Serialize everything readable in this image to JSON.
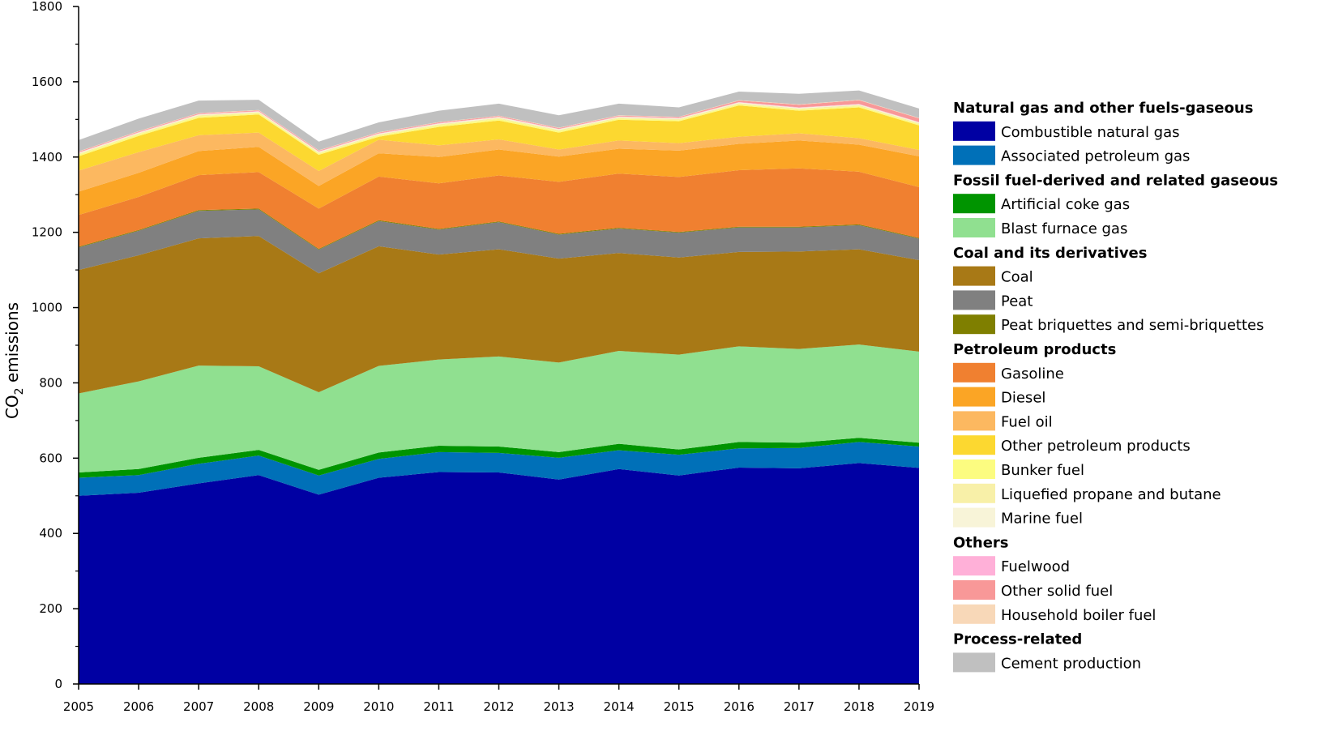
{
  "colors": {
    "combustible_natural_gas": "#0000A3",
    "associated_petroleum_gas": "#0070B8",
    "artificial_coke_gas": "#009400",
    "blast_furnace_gas": "#90E090",
    "coal": "#A87916",
    "peat": "#808080",
    "peat_briquettes": "#7F7F00",
    "gasoline": "#F08030",
    "diesel": "#FBA525",
    "fuel_oil": "#FCB860",
    "other_petroleum": "#FCD830",
    "bunker_fuel": "#FCFC80",
    "lpg": "#F8F0A8",
    "marine_fuel": "#F8F4D8",
    "fuelwood": "#FFB0D8",
    "other_solid": "#F89898",
    "household_boiler": "#F8D8B8",
    "cement": "#C0C0C0"
  },
  "chart_data": {
    "type": "area",
    "title": "",
    "xlabel": "",
    "ylabel_main": "CO",
    "ylabel_sub": "2",
    "ylabel_rest": " emissions",
    "ylim": [
      0,
      1800
    ],
    "yticks": [
      0,
      200,
      400,
      600,
      800,
      1000,
      1200,
      1400,
      1600,
      1800
    ],
    "x": [
      "2005",
      "2006",
      "2007",
      "2008",
      "2009",
      "2010",
      "2011",
      "2012",
      "2013",
      "2014",
      "2015",
      "2016",
      "2017",
      "2018",
      "2019"
    ],
    "legend_position": "right",
    "series": [
      {
        "name": "Combustible natural gas",
        "key": "combustible_natural_gas",
        "values": [
          500,
          508,
          533,
          555,
          503,
          548,
          563,
          562,
          543,
          571,
          554,
          575,
          573,
          587,
          574
        ]
      },
      {
        "name": "Associated petroleum gas",
        "key": "associated_petroleum_gas",
        "values": [
          48,
          47,
          52,
          52,
          51,
          50,
          53,
          52,
          58,
          50,
          55,
          51,
          54,
          56,
          57
        ]
      },
      {
        "name": "Artificial coke gas",
        "key": "artificial_coke_gas",
        "values": [
          14,
          16,
          16,
          15,
          15,
          17,
          17,
          17,
          15,
          17,
          14,
          17,
          14,
          11,
          10
        ]
      },
      {
        "name": "Blast furnace gas",
        "key": "blast_furnace_gas",
        "values": [
          210,
          233,
          245,
          222,
          206,
          230,
          229,
          239,
          238,
          247,
          252,
          254,
          249,
          248,
          242
        ]
      },
      {
        "name": "Coal",
        "key": "coal",
        "values": [
          328,
          335,
          338,
          346,
          316,
          318,
          279,
          285,
          276,
          260,
          258,
          251,
          259,
          253,
          243
        ]
      },
      {
        "name": "Peat",
        "key": "peat",
        "values": [
          60,
          65,
          73,
          71,
          63,
          67,
          66,
          72,
          64,
          65,
          66,
          65,
          64,
          64,
          57
        ]
      },
      {
        "name": "Peat  briquettes and semi-briquettes",
        "key": "peat_briquettes",
        "values": [
          2,
          2,
          2,
          2,
          2,
          2,
          2,
          2,
          2,
          2,
          2,
          2,
          2,
          2,
          2
        ]
      },
      {
        "name": "Gasoline",
        "key": "gasoline",
        "values": [
          84,
          88,
          93,
          97,
          107,
          116,
          121,
          122,
          138,
          144,
          146,
          150,
          155,
          140,
          135
        ]
      },
      {
        "name": "Diesel",
        "key": "diesel",
        "values": [
          62,
          64,
          64,
          67,
          60,
          62,
          70,
          69,
          67,
          66,
          70,
          70,
          74,
          72,
          82
        ]
      },
      {
        "name": "Fuel oil",
        "key": "fuel_oil",
        "values": [
          56,
          55,
          42,
          38,
          40,
          36,
          31,
          27,
          19,
          22,
          20,
          19,
          19,
          17,
          17
        ]
      },
      {
        "name": "Other petroleum products",
        "key": "other_petroleum",
        "values": [
          38,
          43,
          46,
          48,
          43,
          8,
          49,
          50,
          45,
          55,
          58,
          83,
          60,
          82,
          65
        ]
      },
      {
        "name": "Bunker fuel",
        "key": "bunker_fuel",
        "values": [
          4,
          4,
          4,
          3,
          3,
          3,
          4,
          4,
          4,
          3,
          3,
          3,
          3,
          3,
          3
        ]
      },
      {
        "name": "Liquefied propane and butane",
        "key": "lpg",
        "values": [
          3,
          3,
          3,
          3,
          3,
          3,
          3,
          3,
          3,
          3,
          3,
          3,
          3,
          3,
          3
        ]
      },
      {
        "name": "Marine fuel",
        "key": "marine_fuel",
        "values": [
          2,
          2,
          2,
          2,
          2,
          2,
          2,
          2,
          2,
          2,
          2,
          2,
          2,
          2,
          2
        ]
      },
      {
        "name": "Fuelwood",
        "key": "fuelwood",
        "values": [
          1,
          1,
          1,
          1,
          1,
          1,
          1,
          1,
          1,
          1,
          1,
          1,
          1,
          1,
          1
        ]
      },
      {
        "name": "Other solid fuel",
        "key": "other_solid",
        "values": [
          2,
          2,
          2,
          2,
          2,
          2,
          2,
          2,
          2,
          2,
          2,
          4,
          7,
          10,
          10
        ]
      },
      {
        "name": "Household boiler fuel",
        "key": "household_boiler",
        "values": [
          1,
          1,
          1,
          1,
          1,
          1,
          1,
          1,
          1,
          1,
          1,
          1,
          1,
          1,
          1
        ]
      },
      {
        "name": "Cement production",
        "key": "cement",
        "values": [
          30,
          33,
          33,
          27,
          23,
          26,
          30,
          32,
          33,
          31,
          25,
          23,
          28,
          25,
          25
        ]
      }
    ],
    "legend_groups": [
      {
        "title": "Natural gas and other fuels-gaseous",
        "items": [
          "combustible_natural_gas",
          "associated_petroleum_gas"
        ]
      },
      {
        "title": "Fossil fuel-derived and related gaseous",
        "items": [
          "artificial_coke_gas",
          "blast_furnace_gas"
        ]
      },
      {
        "title": "Coal and its derivatives",
        "items": [
          "coal",
          "peat",
          "peat_briquettes"
        ]
      },
      {
        "title": "Petroleum products",
        "items": [
          "gasoline",
          "diesel",
          "fuel_oil",
          "other_petroleum",
          "bunker_fuel",
          "lpg",
          "marine_fuel"
        ]
      },
      {
        "title": "Others",
        "items": [
          "fuelwood",
          "other_solid",
          "household_boiler"
        ]
      },
      {
        "title": "Process-related",
        "items": [
          "cement"
        ]
      }
    ]
  }
}
